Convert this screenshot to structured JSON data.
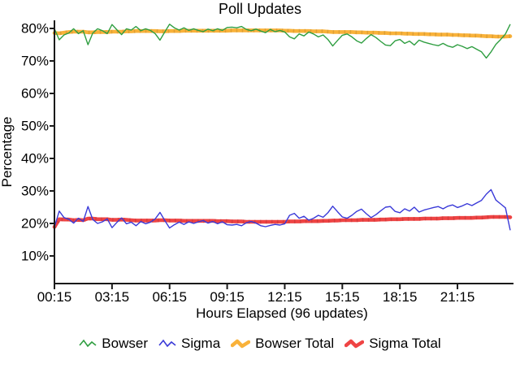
{
  "title": "Poll Updates",
  "axes": {
    "y_label": "Percentage",
    "x_label": "Hours Elapsed (96 updates)"
  },
  "colors": {
    "bowser": "#2f9e41",
    "sigma": "#3a3ad8",
    "bowser_total": "#f9b23a",
    "sigma_total": "#ef4444",
    "axis": "#1a1a1a"
  },
  "chart_data": {
    "type": "line",
    "title": "Poll Updates",
    "xlabel": "Hours Elapsed (96 updates)",
    "ylabel": "Percentage",
    "n_points": 96,
    "x_start_hours": 0.25,
    "x_step_hours": 0.25,
    "x_end_hours": 24.0,
    "ylim": [
      0,
      85
    ],
    "grid": false,
    "legend_position": "bottom-center",
    "y_tick_values": [
      10,
      20,
      30,
      40,
      50,
      60,
      70,
      80
    ],
    "y_tick_labels": [
      "10%",
      "20%",
      "30%",
      "40%",
      "50%",
      "60%",
      "70%",
      "80%"
    ],
    "x_tick_hours": [
      0.25,
      3.25,
      6.25,
      9.25,
      12.25,
      15.25,
      18.25,
      21.25
    ],
    "x_tick_labels": [
      "00:15",
      "03:15",
      "06:15",
      "09:15",
      "12:15",
      "15:15",
      "18:15",
      "21:15"
    ],
    "series": [
      {
        "name": "Bowser",
        "color": "#2f9e41",
        "style": "thin",
        "values": [
          79.9,
          76.5,
          78.0,
          78.6,
          79.9,
          78.4,
          79.3,
          75.0,
          78.6,
          79.9,
          79.3,
          78.4,
          81.2,
          79.6,
          78.1,
          79.9,
          79.5,
          80.6,
          79.3,
          79.9,
          79.4,
          78.4,
          76.4,
          78.9,
          81.3,
          80.2,
          79.5,
          80.2,
          79.4,
          79.9,
          79.4,
          79.0,
          79.8,
          79.3,
          79.9,
          79.4,
          80.3,
          80.4,
          80.2,
          80.6,
          79.7,
          79.3,
          79.8,
          79.2,
          78.7,
          79.7,
          79.0,
          79.4,
          78.9,
          77.4,
          76.8,
          78.3,
          77.7,
          78.9,
          78.3,
          77.4,
          78.0,
          76.6,
          74.6,
          76.3,
          77.9,
          78.3,
          77.4,
          76.2,
          75.5,
          76.9,
          78.1,
          77.2,
          76.0,
          74.9,
          74.7,
          76.2,
          76.6,
          75.4,
          76.1,
          74.9,
          76.4,
          75.8,
          75.4,
          75.0,
          74.7,
          75.4,
          74.6,
          74.2,
          75.0,
          74.5,
          73.8,
          74.4,
          73.6,
          72.8,
          70.9,
          72.8,
          75.1,
          76.6,
          78.3,
          81.3
        ]
      },
      {
        "name": "Sigma",
        "color": "#3a3ad8",
        "style": "thin",
        "values": [
          18.9,
          23.8,
          21.8,
          21.3,
          20.1,
          21.6,
          20.6,
          25.2,
          21.2,
          20.0,
          20.5,
          21.4,
          18.7,
          20.3,
          21.7,
          19.9,
          20.4,
          19.3,
          20.6,
          19.9,
          20.4,
          21.4,
          23.4,
          20.9,
          18.6,
          19.6,
          20.4,
          19.7,
          20.5,
          20.0,
          20.5,
          20.9,
          20.1,
          20.6,
          19.9,
          20.5,
          19.6,
          19.5,
          19.7,
          19.3,
          20.2,
          20.6,
          20.1,
          19.3,
          19.0,
          19.4,
          19.7,
          19.5,
          19.9,
          22.5,
          23.1,
          21.6,
          22.2,
          21.0,
          21.6,
          22.5,
          21.9,
          23.3,
          25.3,
          23.6,
          22.0,
          21.6,
          22.5,
          23.7,
          24.4,
          23.0,
          21.8,
          22.7,
          23.9,
          25.0,
          25.2,
          23.7,
          23.3,
          24.5,
          23.8,
          25.0,
          23.5,
          24.1,
          24.5,
          24.9,
          25.2,
          24.5,
          25.3,
          25.7,
          24.9,
          25.4,
          26.1,
          25.5,
          26.3,
          27.1,
          29.0,
          30.4,
          27.2,
          26.0,
          24.8,
          17.9
        ]
      },
      {
        "name": "Bowser Total",
        "color": "#f9b23a",
        "style": "thick",
        "values": [
          78.6,
          78.5,
          78.7,
          78.9,
          79.0,
          79.0,
          79.0,
          78.8,
          78.8,
          78.9,
          78.9,
          78.9,
          79.0,
          79.0,
          79.0,
          79.1,
          79.1,
          79.2,
          79.2,
          79.2,
          79.2,
          79.2,
          79.1,
          79.1,
          79.2,
          79.2,
          79.2,
          79.3,
          79.3,
          79.3,
          79.3,
          79.3,
          79.3,
          79.3,
          79.3,
          79.3,
          79.3,
          79.4,
          79.4,
          79.4,
          79.4,
          79.4,
          79.4,
          79.4,
          79.4,
          79.4,
          79.4,
          79.4,
          79.3,
          79.3,
          79.2,
          79.2,
          79.2,
          79.2,
          79.1,
          79.1,
          79.1,
          79.0,
          78.9,
          78.9,
          78.9,
          78.9,
          78.9,
          78.8,
          78.8,
          78.7,
          78.7,
          78.7,
          78.6,
          78.6,
          78.5,
          78.5,
          78.5,
          78.4,
          78.4,
          78.3,
          78.3,
          78.3,
          78.2,
          78.2,
          78.1,
          78.1,
          78.1,
          78.0,
          78.0,
          77.9,
          77.9,
          77.8,
          77.8,
          77.7,
          77.6,
          77.6,
          77.5,
          77.5,
          77.5,
          77.6
        ]
      },
      {
        "name": "Sigma Total",
        "color": "#ef4444",
        "style": "thick",
        "values": [
          18.9,
          21.3,
          21.2,
          21.2,
          21.0,
          21.1,
          21.0,
          21.5,
          21.5,
          21.3,
          21.3,
          21.3,
          21.1,
          21.1,
          21.2,
          21.1,
          21.0,
          20.9,
          20.9,
          20.9,
          20.9,
          20.9,
          21.0,
          21.0,
          20.9,
          20.9,
          20.9,
          20.8,
          20.8,
          20.8,
          20.8,
          20.8,
          20.8,
          20.8,
          20.7,
          20.7,
          20.7,
          20.6,
          20.6,
          20.6,
          20.5,
          20.5,
          20.5,
          20.5,
          20.5,
          20.5,
          20.5,
          20.5,
          20.5,
          20.6,
          20.6,
          20.6,
          20.7,
          20.7,
          20.7,
          20.7,
          20.8,
          20.8,
          20.9,
          20.9,
          21.0,
          21.0,
          21.0,
          21.0,
          21.1,
          21.1,
          21.1,
          21.1,
          21.2,
          21.2,
          21.3,
          21.3,
          21.3,
          21.4,
          21.4,
          21.4,
          21.4,
          21.5,
          21.5,
          21.5,
          21.5,
          21.6,
          21.6,
          21.6,
          21.7,
          21.7,
          21.7,
          21.7,
          21.8,
          21.8,
          21.9,
          22.0,
          22.0,
          22.0,
          22.0,
          21.9
        ]
      }
    ]
  }
}
